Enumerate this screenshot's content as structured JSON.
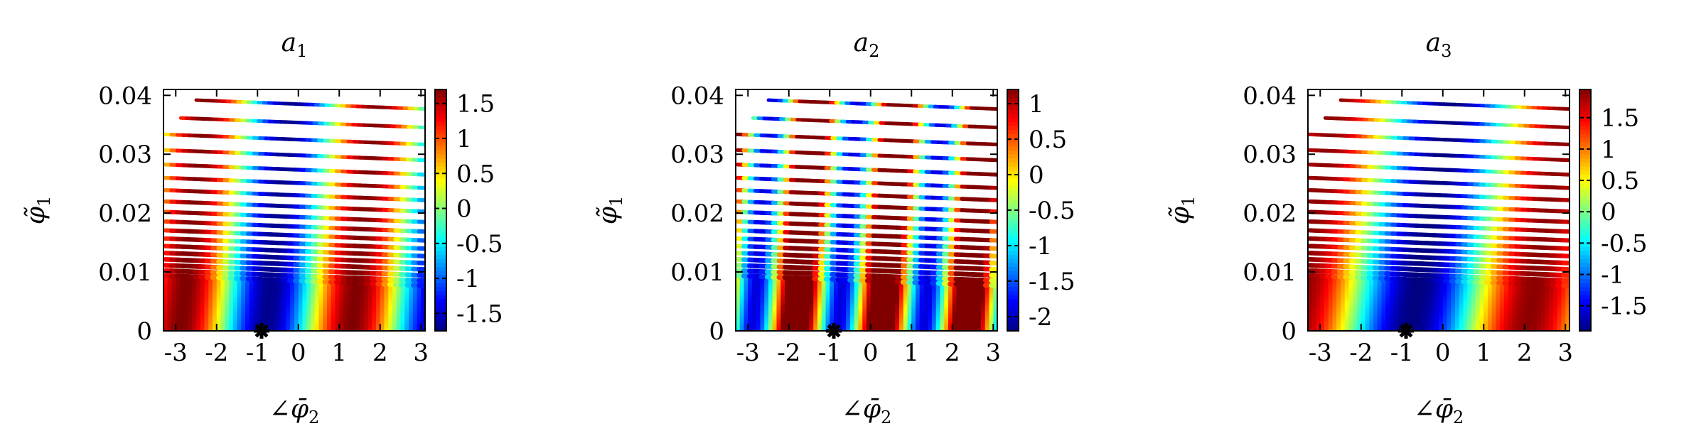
{
  "chart_data": [
    {
      "type": "heatmap",
      "title": "a",
      "title_sub": "1",
      "xlabel": "∠φ̄",
      "xlabel_sub": "2",
      "ylabel": "φ̃",
      "ylabel_sub": "1",
      "xlim": [
        -3.3,
        3.1
      ],
      "ylim": [
        0,
        0.041
      ],
      "x_ticks": [
        -3,
        -2,
        -1,
        0,
        1,
        2,
        3
      ],
      "x_tick_labels": [
        "-3",
        "-2",
        "-1",
        "0",
        "1",
        "2",
        "3"
      ],
      "y_ticks": [
        0,
        0.01,
        0.02,
        0.03,
        0.04
      ],
      "y_tick_labels": [
        "0",
        "0.01",
        "0.02",
        "0.03",
        "0.04"
      ],
      "colorbar": {
        "range": [
          -1.75,
          1.7
        ],
        "ticks": [
          1.5,
          1,
          0.5,
          0,
          -0.5,
          -1,
          -1.5
        ],
        "tick_labels": [
          "1.5",
          "1",
          "0.5",
          "0",
          "-0.5",
          "-1",
          "-1.5"
        ]
      },
      "model": {
        "kind": "a1",
        "x_min": -0.8,
        "amplitude": 1.7
      },
      "marker": {
        "symbol": "asterisk",
        "x": -0.9,
        "y": 0
      },
      "colormap": "jet"
    },
    {
      "type": "heatmap",
      "title": "a",
      "title_sub": "2",
      "xlabel": "∠φ̄",
      "xlabel_sub": "2",
      "ylabel": "φ̃",
      "ylabel_sub": "1",
      "xlim": [
        -3.3,
        3.1
      ],
      "ylim": [
        0,
        0.041
      ],
      "x_ticks": [
        -3,
        -2,
        -1,
        0,
        1,
        2,
        3
      ],
      "x_tick_labels": [
        "-3",
        "-2",
        "-1",
        "0",
        "1",
        "2",
        "3"
      ],
      "y_ticks": [
        0,
        0.01,
        0.02,
        0.03,
        0.04
      ],
      "y_tick_labels": [
        "0",
        "0.01",
        "0.02",
        "0.03",
        "0.04"
      ],
      "colorbar": {
        "range": [
          -2.2,
          1.2
        ],
        "ticks": [
          1,
          0.5,
          0,
          -0.5,
          -1,
          -1.5,
          -2
        ],
        "tick_labels": [
          "1",
          "0.5",
          "0",
          "-0.5",
          "-1",
          "-1.5",
          "-2"
        ]
      },
      "model": {
        "kind": "a2",
        "x_min": -0.8,
        "amplitude": 2.1
      },
      "marker": {
        "symbol": "asterisk",
        "x": -0.9,
        "y": 0
      },
      "colormap": "jet"
    },
    {
      "type": "heatmap",
      "title": "a",
      "title_sub": "3",
      "xlabel": "∠φ̄",
      "xlabel_sub": "2",
      "ylabel": "φ̃",
      "ylabel_sub": "1",
      "xlim": [
        -3.3,
        3.1
      ],
      "ylim": [
        0,
        0.041
      ],
      "x_ticks": [
        -3,
        -2,
        -1,
        0,
        1,
        2,
        3
      ],
      "x_tick_labels": [
        "-3",
        "-2",
        "-1",
        "0",
        "1",
        "2",
        "3"
      ],
      "y_ticks": [
        0,
        0.01,
        0.02,
        0.03,
        0.04
      ],
      "y_tick_labels": [
        "0",
        "0.01",
        "0.02",
        "0.03",
        "0.04"
      ],
      "colorbar": {
        "range": [
          -1.9,
          1.95
        ],
        "ticks": [
          1.5,
          1,
          0.5,
          0,
          -0.5,
          -1,
          -1.5
        ],
        "tick_labels": [
          "1.5",
          "1",
          "0.5",
          "0",
          "-0.5",
          "-1",
          "-1.5"
        ]
      },
      "model": {
        "kind": "a3",
        "x_min": -0.8,
        "amplitude": 1.9
      },
      "marker": {
        "symbol": "asterisk",
        "x": -0.9,
        "y": 0
      },
      "colormap": "jet"
    }
  ]
}
